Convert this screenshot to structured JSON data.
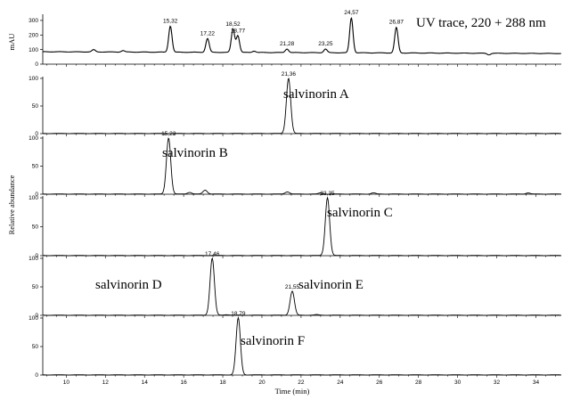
{
  "figure": {
    "uv_title": "UV trace, 220 + 288 nm",
    "uv_ylabel": "mAU",
    "ms_ylabel": "Relative abundance",
    "xlabel": "Time (min)"
  },
  "chart_data": [
    {
      "type": "line",
      "title": "UV trace, 220 + 288 nm",
      "ylabel": "mAU",
      "xlabel": "",
      "xlim": [
        8.8,
        35.3
      ],
      "ylim": [
        0,
        330
      ],
      "yticks": [
        0,
        100,
        200,
        300
      ],
      "baseline": 85,
      "peaks": [
        {
          "rt": 11.4,
          "height": 100,
          "label": ""
        },
        {
          "rt": 12.9,
          "height": 95,
          "label": ""
        },
        {
          "rt": 15.32,
          "height": 265,
          "label": "15,32"
        },
        {
          "rt": 16.3,
          "height": 85,
          "label": ""
        },
        {
          "rt": 17.22,
          "height": 180,
          "label": "17,22"
        },
        {
          "rt": 18.52,
          "height": 245,
          "label": "18,52"
        },
        {
          "rt": 18.77,
          "height": 200,
          "label": "18,77"
        },
        {
          "rt": 19.6,
          "height": 95,
          "label": ""
        },
        {
          "rt": 21.28,
          "height": 110,
          "label": "21,28"
        },
        {
          "rt": 23.25,
          "height": 110,
          "label": "23,25"
        },
        {
          "rt": 24.57,
          "height": 325,
          "label": "24,57"
        },
        {
          "rt": 26.87,
          "height": 260,
          "label": "26,87"
        },
        {
          "rt": 31.6,
          "height": 75,
          "label": ""
        }
      ]
    },
    {
      "type": "line",
      "series_label": "salvinorin A",
      "ylim": [
        0,
        100
      ],
      "yticks": [
        0,
        50,
        100
      ],
      "peaks": [
        {
          "rt": 21.36,
          "height": 100,
          "label": "21,36"
        }
      ]
    },
    {
      "type": "line",
      "series_label": "salvinorin B",
      "ylim": [
        0,
        100
      ],
      "yticks": [
        0,
        50,
        100
      ],
      "peaks": [
        {
          "rt": 15.23,
          "height": 100,
          "label": "15,23"
        },
        {
          "rt": 16.3,
          "height": 3,
          "label": ""
        },
        {
          "rt": 17.1,
          "height": 7,
          "label": ""
        },
        {
          "rt": 21.3,
          "height": 4,
          "label": ""
        },
        {
          "rt": 23.0,
          "height": 2,
          "label": ""
        },
        {
          "rt": 25.7,
          "height": 2,
          "label": ""
        },
        {
          "rt": 33.6,
          "height": 2,
          "label": ""
        }
      ]
    },
    {
      "type": "line",
      "series_label": "salvinorin C",
      "ylim": [
        0,
        100
      ],
      "yticks": [
        0,
        50,
        100
      ],
      "peaks": [
        {
          "rt": 23.35,
          "height": 100,
          "label": "23,35"
        }
      ]
    },
    {
      "type": "line",
      "series_labels": [
        "salvinorin D",
        "salvinorin E"
      ],
      "ylim": [
        0,
        100
      ],
      "yticks": [
        0,
        50,
        100
      ],
      "peaks": [
        {
          "rt": 17.46,
          "height": 100,
          "label": "17,46"
        },
        {
          "rt": 21.55,
          "height": 42,
          "label": "21,55"
        },
        {
          "rt": 18.2,
          "height": 1,
          "label": ""
        },
        {
          "rt": 22.8,
          "height": 1,
          "label": ""
        }
      ]
    },
    {
      "type": "line",
      "series_label": "salvinorin F",
      "ylim": [
        0,
        100
      ],
      "yticks": [
        0,
        50,
        100
      ],
      "peaks": [
        {
          "rt": 18.79,
          "height": 100,
          "label": "18,79"
        }
      ]
    }
  ],
  "x_axis": {
    "xlim": [
      8.8,
      35.3
    ],
    "ticks": [
      10,
      12,
      14,
      16,
      18,
      20,
      22,
      24,
      26,
      28,
      30,
      32,
      34
    ],
    "label": "Time (min)"
  }
}
